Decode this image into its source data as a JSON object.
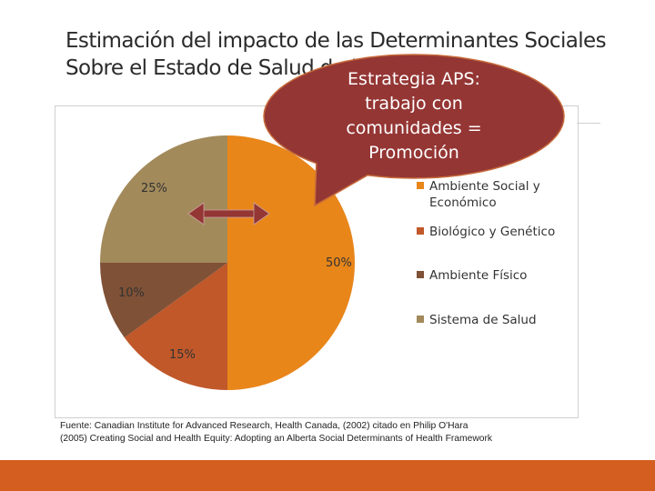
{
  "title": {
    "line1": "Estimación del impacto de las Determinantes Sociales",
    "line2": "Sobre el Estado de Salud de la Población"
  },
  "callout": {
    "line1": "Estrategia APS:",
    "line2": "trabajo con",
    "line3": "comunidades =",
    "line4": "Promoción",
    "color": "#943634"
  },
  "chart_data": {
    "type": "pie",
    "categories": [
      "Ambiente Social y Económico",
      "Biológico y Genético",
      "Ambiente Físico",
      "Sistema de Salud"
    ],
    "values": [
      50,
      15,
      10,
      25
    ],
    "data_labels": [
      "50%",
      "15%",
      "10%",
      "25%"
    ],
    "colors": [
      "#E8861A",
      "#C0582A",
      "#7F5136",
      "#A38A5B"
    ],
    "legend_position": "right"
  },
  "legend": {
    "items": [
      {
        "label": "Ambiente Social y Económico",
        "color": "#E8861A"
      },
      {
        "label": "Biológico y Genético",
        "color": "#C0582A"
      },
      {
        "label": "Ambiente Físico",
        "color": "#7F5136"
      },
      {
        "label": "Sistema de Salud",
        "color": "#A38A5B"
      }
    ]
  },
  "arrow": {
    "color": "#943634",
    "icon": "double-arrow-icon"
  },
  "source": {
    "line1": "Fuente: Canadian Institute for Advanced Research, Health Canada, (2002)  citado en Philip O'Hara",
    "line2": "(2005) Creating Social and Health Equity: Adopting an Alberta Social Determinants of Health Framework"
  },
  "theme": {
    "accent": "#D35E1F"
  }
}
